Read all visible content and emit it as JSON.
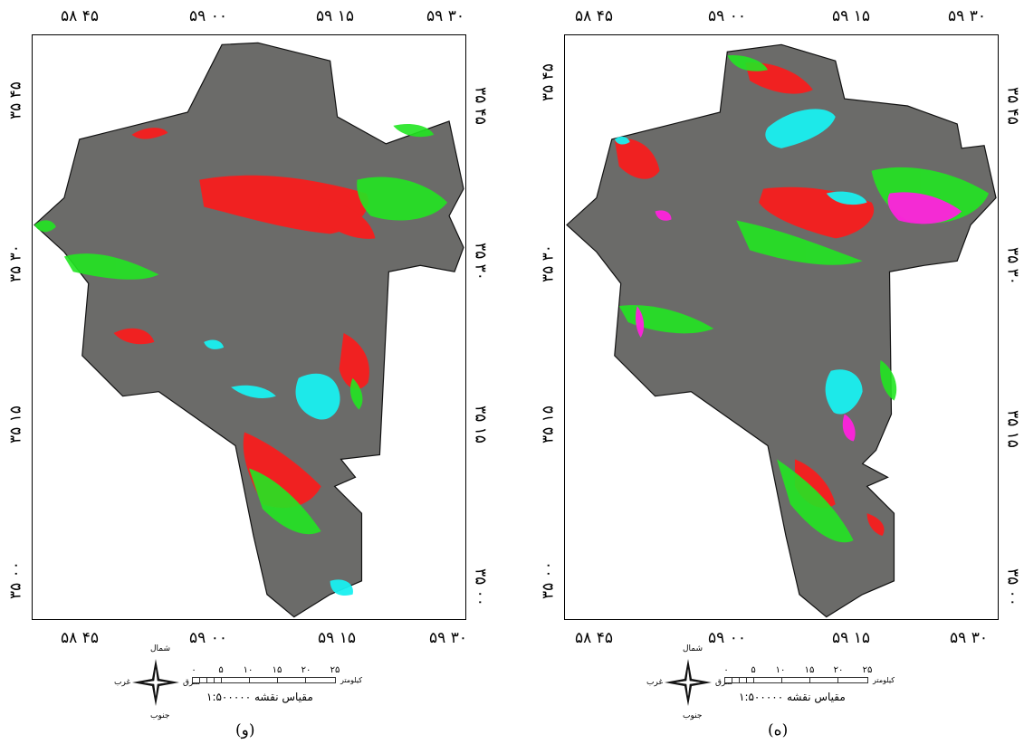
{
  "panels": [
    {
      "caption": "(و)",
      "ticks_top": [
        "۵۸ ۴۵",
        "۵۹ ۰۰",
        "۵۹ ۱۵",
        "۵۹ ۳۰"
      ],
      "ticks_bottom": [
        "۵۸ ۴۵",
        "۵۹ ۰۰",
        "۵۹ ۱۵",
        "۵۹ ۳۰"
      ],
      "ticks_left": [
        "۳۵ ۴۵",
        "۳۵ ۳۰",
        "۳۵ ۱۵",
        "۳۵ ۰۰"
      ],
      "ticks_right": [
        "۳۵ ۴۵",
        "۳۵ ۳۰",
        "۳۵ ۱۵",
        "۳۵ ۰۰"
      ]
    },
    {
      "caption": "(ه)",
      "ticks_top": [
        "۵۸ ۴۵",
        "۵۹ ۰۰",
        "۵۹ ۱۵",
        "۵۹ ۳۰"
      ],
      "ticks_bottom": [
        "۵۸ ۴۵",
        "۵۹ ۰۰",
        "۵۹ ۱۵",
        "۵۹ ۳۰"
      ],
      "ticks_left": [
        "۳۵ ۴۵",
        "۳۵ ۳۰",
        "۳۵ ۱۵",
        "۳۵ ۰۰"
      ],
      "ticks_right": [
        "۳۵ ۴۵",
        "۳۵ ۳۰",
        "۳۵ ۱۵",
        "۳۵ ۰۰"
      ]
    }
  ],
  "compass": {
    "north": "شمال",
    "south": "جنوب",
    "east": "شرق",
    "west": "غرب"
  },
  "scale": {
    "numbers": [
      "۰",
      "۵",
      "۱۰",
      "۱۵",
      "۲۰",
      "۲۵"
    ],
    "unit": "کیلومتر",
    "ratio": "مقیاس نقشه ۱:۵۰۰۰۰۰"
  },
  "colors": {
    "region": "#6b6b69",
    "class_red": "#ff1a1a",
    "class_green": "#22e622",
    "class_cyan": "#19f0f0",
    "class_magenta": "#ff22dd"
  }
}
